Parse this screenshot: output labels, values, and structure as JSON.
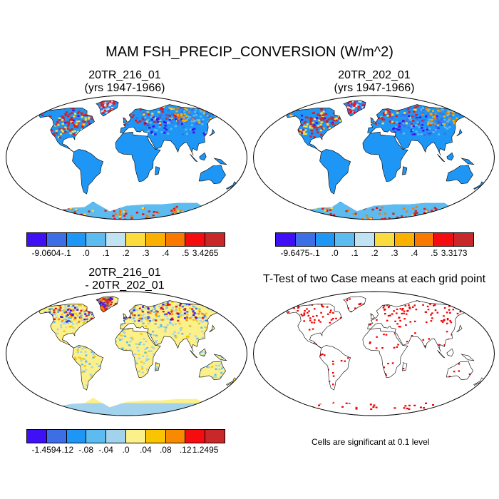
{
  "title": "MAM FSH_PRECIP_CONVERSION (W/m^2)",
  "colors": {
    "scale": [
      "#3f0ff5",
      "#3e6ee6",
      "#1e96f5",
      "#5dbcef",
      "#c0e2f2",
      "#fbdc3e",
      "#fbb000",
      "#f87800",
      "#f50c10",
      "#c8282a"
    ],
    "diff_scale": [
      "#3f0ff5",
      "#3e6ee6",
      "#1e96f5",
      "#5dbcef",
      "#a3d3ec",
      "#fcf08a",
      "#fbc400",
      "#f78a00",
      "#f50c10",
      "#c8282a"
    ],
    "ocean": "#ffffff",
    "land_base": "#1e96f5",
    "antarctic": "#5dbcef",
    "sig": "#f00000"
  },
  "panels": [
    {
      "title_line1": "20TR_216_01",
      "title_line2": "(yrs 1947-1966)",
      "colorbar": {
        "labels": [
          "-9.0604",
          "-.1",
          ".0",
          ".1",
          ".2",
          ".3",
          ".4",
          ".5",
          "3.4265"
        ]
      }
    },
    {
      "title_line1": "20TR_202_01",
      "title_line2": "(yrs 1947-1966)",
      "colorbar": {
        "labels": [
          "-9.6475",
          "-.1",
          ".0",
          ".1",
          ".2",
          ".3",
          ".4",
          ".5",
          "3.3173"
        ]
      }
    },
    {
      "title_line1": "20TR_216_01",
      "title_line2": "- 20TR_202_01",
      "colorbar": {
        "labels": [
          "-1.4594",
          "-.12",
          "-.08",
          "-.04",
          ".0",
          ".04",
          ".08",
          ".12",
          "1.2495"
        ]
      }
    },
    {
      "title_line1": "T-Test of two Case means at each grid point",
      "note": "Cells are significant at 0.1 level"
    }
  ]
}
